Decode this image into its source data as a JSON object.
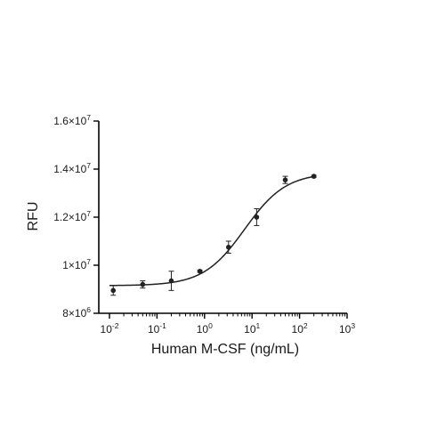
{
  "chart_data": {
    "type": "scatter",
    "xlabel": "Human M-CSF (ng/mL)",
    "ylabel": "RFU",
    "x_scale": "log10",
    "xlim": [
      0.01,
      1000
    ],
    "ylim": [
      8000000,
      16000000
    ],
    "x_ticks": [
      {
        "value": 0.01,
        "base": "10",
        "exp": "-2"
      },
      {
        "value": 0.1,
        "base": "10",
        "exp": "-1"
      },
      {
        "value": 1,
        "base": "10",
        "exp": "0"
      },
      {
        "value": 10,
        "base": "10",
        "exp": "1"
      },
      {
        "value": 100,
        "base": "10",
        "exp": "2"
      },
      {
        "value": 1000,
        "base": "10",
        "exp": "3"
      }
    ],
    "y_ticks": [
      {
        "value": 8000000,
        "mant": "8",
        "exp": "6"
      },
      {
        "value": 10000000,
        "mant": "1",
        "exp": "7"
      },
      {
        "value": 12000000,
        "mant": "1.2",
        "exp": "7"
      },
      {
        "value": 14000000,
        "mant": "1.4",
        "exp": "7"
      },
      {
        "value": 16000000,
        "mant": "1.6",
        "exp": "7"
      }
    ],
    "points": [
      {
        "x": 0.012,
        "y": 8950000,
        "err": 200000
      },
      {
        "x": 0.05,
        "y": 9200000,
        "err": 150000
      },
      {
        "x": 0.2,
        "y": 9350000,
        "err": 400000
      },
      {
        "x": 0.8,
        "y": 9750000,
        "err": 40000
      },
      {
        "x": 3.2,
        "y": 10750000,
        "err": 250000
      },
      {
        "x": 12.5,
        "y": 12000000,
        "err": 350000
      },
      {
        "x": 50,
        "y": 13550000,
        "err": 150000
      },
      {
        "x": 200,
        "y": 13700000,
        "err": 40000
      }
    ],
    "fit": {
      "type": "four-parameter logistic",
      "bottom": 9150000,
      "top": 13850000,
      "ec50": 7,
      "hill": 1.0
    },
    "grid": false,
    "colors": {
      "marker": "#222222",
      "axis": "#000000",
      "line": "#222222"
    }
  }
}
